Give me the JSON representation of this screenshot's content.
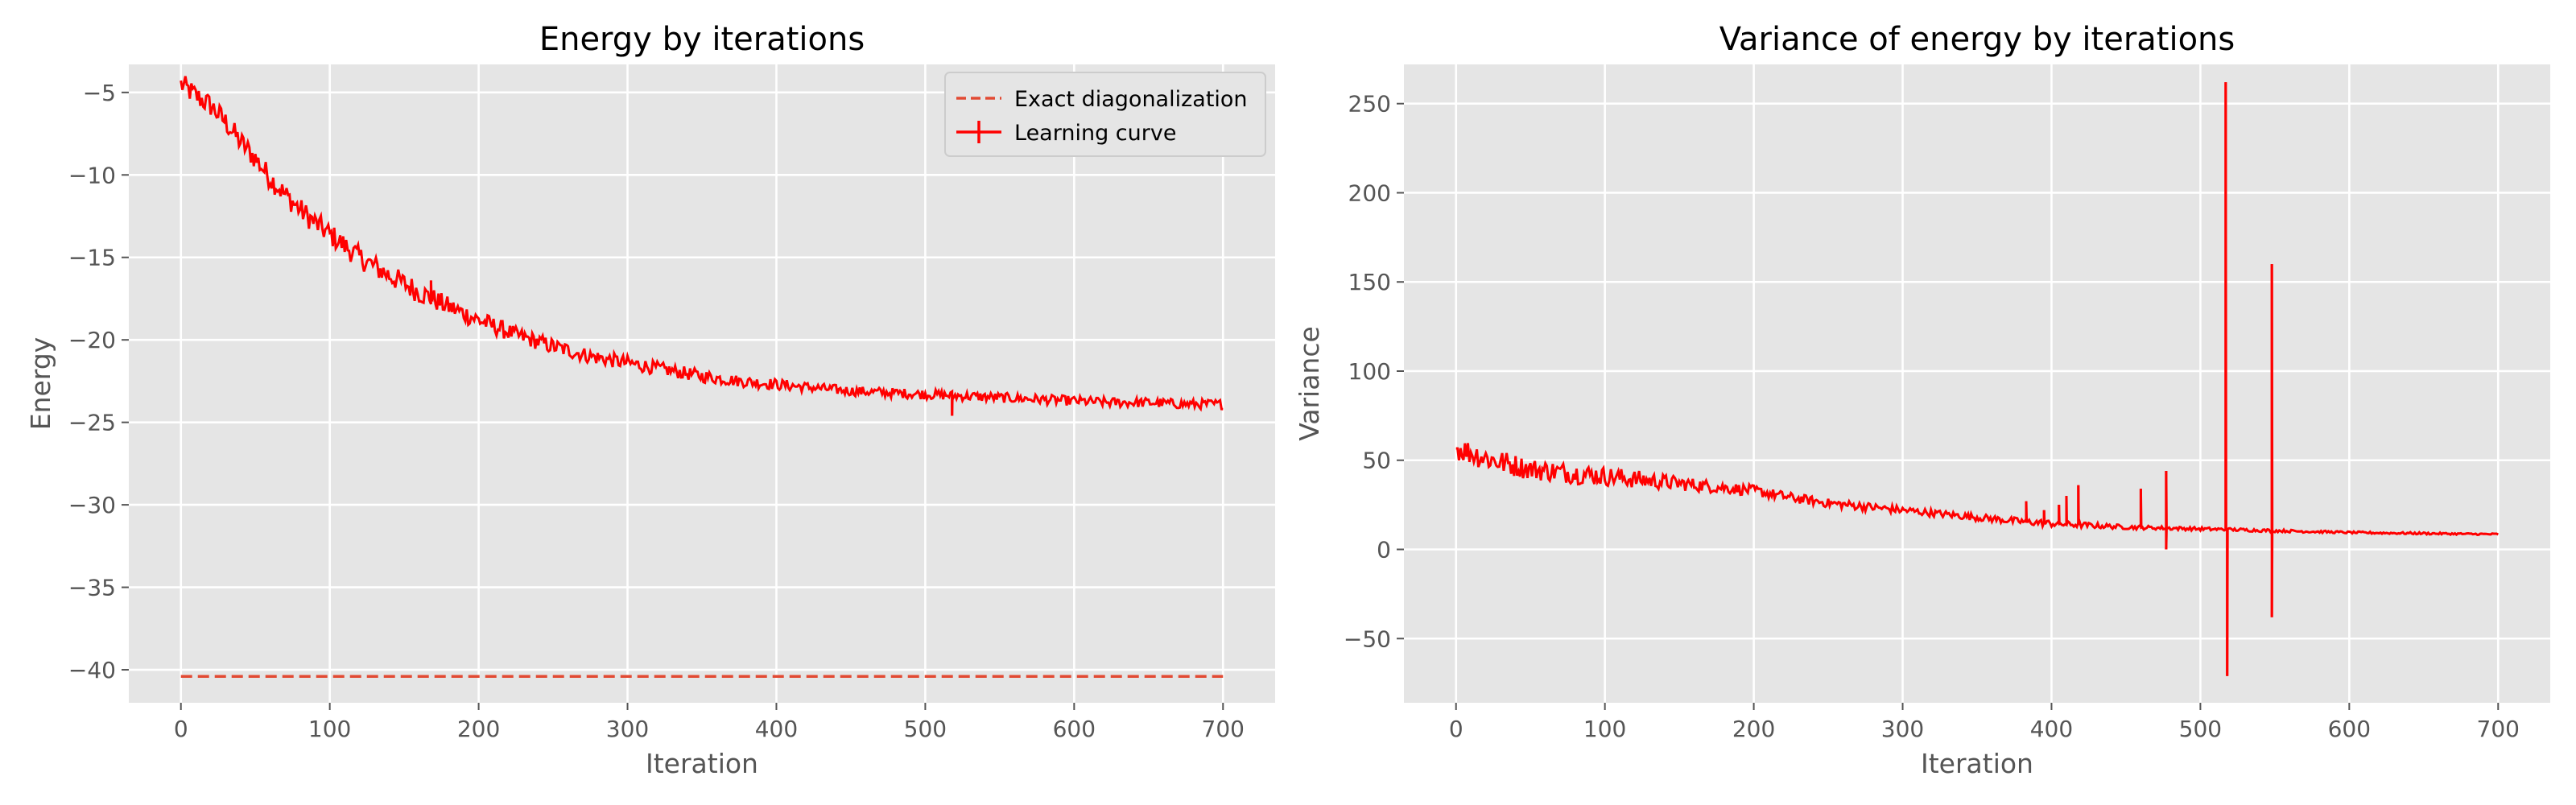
{
  "figure": {
    "background": "#ffffff",
    "plot_background": "#e5e5e5",
    "grid_color": "#ffffff",
    "text_color": "#555555"
  },
  "chart_data": [
    {
      "type": "line",
      "title": "Energy by iterations",
      "xlabel": "Iteration",
      "ylabel": "Energy",
      "xlim": [
        -35,
        735
      ],
      "ylim": [
        -42,
        -3.3
      ],
      "xticks": [
        0,
        100,
        200,
        300,
        400,
        500,
        600,
        700
      ],
      "xtick_labels": [
        "0",
        "100",
        "200",
        "300",
        "400",
        "500",
        "600",
        "700"
      ],
      "yticks": [
        -5,
        -10,
        -15,
        -20,
        -25,
        -30,
        -35,
        -40
      ],
      "ytick_labels": [
        "−5",
        "−10",
        "−15",
        "−20",
        "−25",
        "−30",
        "−35",
        "−40"
      ],
      "grid": true,
      "legend_position": "top-right",
      "series": [
        {
          "name": "Exact diagonalization",
          "style": "dashed",
          "color": "#e24a33",
          "x": [
            0,
            700
          ],
          "y": [
            -40.4,
            -40.4
          ]
        },
        {
          "name": "Learning curve",
          "style": "solid",
          "color": "#ff0000",
          "x": [
            0,
            10,
            20,
            30,
            40,
            50,
            60,
            70,
            80,
            90,
            100,
            120,
            140,
            160,
            180,
            200,
            225,
            250,
            275,
            300,
            325,
            350,
            375,
            400,
            425,
            450,
            475,
            500,
            525,
            550,
            575,
            600,
            625,
            650,
            675,
            700
          ],
          "y": [
            -4.5,
            -5.2,
            -5.8,
            -6.8,
            -8.0,
            -9.0,
            -10.2,
            -11.2,
            -12.1,
            -12.9,
            -13.6,
            -15.0,
            -16.1,
            -17.1,
            -18.0,
            -18.8,
            -19.7,
            -20.4,
            -21.0,
            -21.4,
            -21.8,
            -22.2,
            -22.5,
            -22.7,
            -22.9,
            -23.1,
            -23.2,
            -23.3,
            -23.4,
            -23.5,
            -23.6,
            -23.7,
            -23.8,
            -23.8,
            -23.9,
            -23.9
          ],
          "noise_amplitude": [
            0.7,
            0.7,
            0.7,
            0.7,
            0.7,
            0.7,
            0.7,
            0.7,
            0.7,
            0.7,
            0.7,
            0.7,
            0.7,
            0.7,
            0.6,
            0.6,
            0.5,
            0.5,
            0.45,
            0.45,
            0.4,
            0.4,
            0.35,
            0.35,
            0.3,
            0.3,
            0.3,
            0.3,
            0.3,
            0.3,
            0.3,
            0.3,
            0.3,
            0.3,
            0.3,
            0.3
          ],
          "spikes": [
            {
              "x": 168,
              "y": -16.4
            },
            {
              "x": 518,
              "y": -24.6
            }
          ]
        }
      ]
    },
    {
      "type": "line",
      "title": "Variance of energy by iterations",
      "xlabel": "Iteration",
      "ylabel": "Variance",
      "xlim": [
        -35,
        735
      ],
      "ylim": [
        -86,
        272
      ],
      "xticks": [
        0,
        100,
        200,
        300,
        400,
        500,
        600,
        700
      ],
      "xtick_labels": [
        "0",
        "100",
        "200",
        "300",
        "400",
        "500",
        "600",
        "700"
      ],
      "yticks": [
        250,
        200,
        150,
        100,
        50,
        0,
        -50
      ],
      "ytick_labels": [
        "250",
        "200",
        "150",
        "100",
        "50",
        "0",
        "−50"
      ],
      "grid": true,
      "series": [
        {
          "name": "",
          "style": "solid",
          "color": "#ff0000",
          "x": [
            0,
            25,
            50,
            75,
            100,
            125,
            150,
            175,
            200,
            225,
            250,
            275,
            300,
            325,
            350,
            375,
            400,
            425,
            450,
            475,
            500,
            525,
            550,
            575,
            600,
            625,
            650,
            675,
            700
          ],
          "y": [
            57,
            50,
            45,
            43,
            41,
            39,
            37,
            35,
            33,
            29,
            26,
            24,
            22,
            20,
            18,
            16,
            14.5,
            13.5,
            12.5,
            12,
            11.5,
            11,
            10.5,
            10,
            9.5,
            9.2,
            9,
            8.7,
            8.5
          ],
          "noise_amplitude": [
            7,
            7,
            6,
            6,
            5.5,
            5,
            4,
            3.5,
            3,
            2.8,
            2.5,
            2.5,
            2.2,
            2,
            2,
            2,
            2,
            1.6,
            1.2,
            1,
            1,
            0.9,
            0.8,
            0.7,
            0.6,
            0.6,
            0.6,
            0.5,
            0.5
          ],
          "spikes": [
            {
              "x": 383,
              "y": 27
            },
            {
              "x": 395,
              "y": 22
            },
            {
              "x": 405,
              "y": 25
            },
            {
              "x": 410,
              "y": 30
            },
            {
              "x": 418,
              "y": 36
            },
            {
              "x": 460,
              "y": 34
            },
            {
              "x": 477,
              "y": 44
            },
            {
              "x": 477,
              "y": 0
            },
            {
              "x": 517,
              "y": 262
            },
            {
              "x": 518,
              "y": -71
            },
            {
              "x": 548,
              "y": 160
            },
            {
              "x": 548,
              "y": -38
            }
          ]
        }
      ]
    }
  ]
}
